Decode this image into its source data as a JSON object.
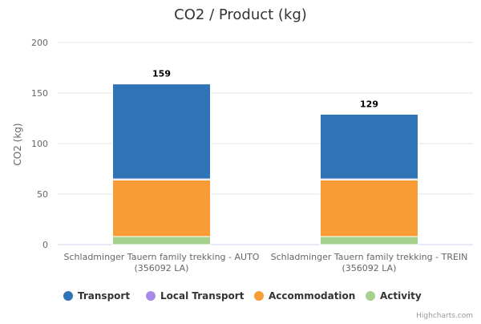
{
  "chart_data": {
    "type": "bar",
    "stacked": true,
    "title": "CO2 / Product (kg)",
    "ylabel": "CO2 (kg)",
    "ylim": [
      0,
      200
    ],
    "yticks": [
      0,
      50,
      100,
      150,
      200
    ],
    "grid": true,
    "legend_position": "bottom",
    "categories": [
      [
        "Schladminger Tauern family trekking - AUTO",
        "(356092 LA)"
      ],
      [
        "Schladminger Tauern family trekking - TREIN",
        "(356092 LA)"
      ]
    ],
    "series": [
      {
        "name": "Activity",
        "color": "#a6d18c",
        "values": [
          8,
          8
        ]
      },
      {
        "name": "Accommodation",
        "color": "#fa9c35",
        "values": [
          56,
          56
        ]
      },
      {
        "name": "Local Transport",
        "color": "#a98ae8",
        "values": [
          1,
          1
        ]
      },
      {
        "name": "Transport",
        "color": "#2f74b6",
        "values": [
          94,
          64
        ]
      }
    ],
    "totals": [
      159,
      129
    ],
    "legend_order": [
      "Transport",
      "Local Transport",
      "Accommodation",
      "Activity"
    ],
    "credits": "Highcharts.com"
  }
}
